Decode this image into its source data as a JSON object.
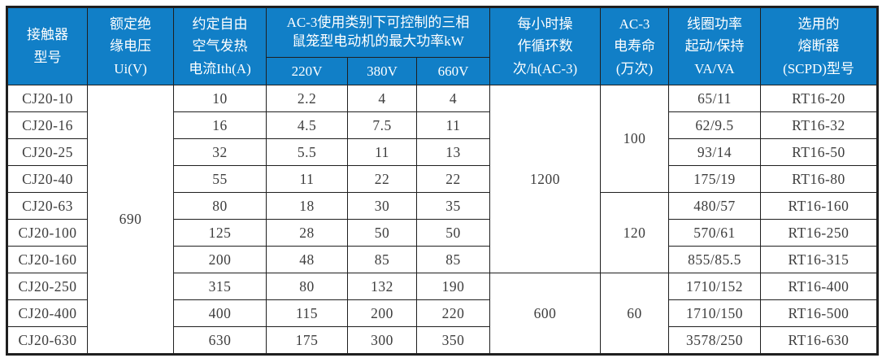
{
  "colors": {
    "header_bg": "#117fc7",
    "header_text": "#ffffff",
    "body_text": "#3d3d3d",
    "border": "#1f1f1f"
  },
  "table": {
    "header": {
      "model": "接触器\n型号",
      "insulation": "额定绝\n缘电压\nUi(V)",
      "thermal_current": "约定自由\n空气发热\n电流Ith(A)",
      "ac3_power_title": "AC-3使用类别下可控制的三相\n鼠笼型电动机的最大功率kW",
      "v220": "220V",
      "v380": "380V",
      "v660": "660V",
      "cycles": "每小时操\n作循环数\n次/h(AC-3)",
      "life": "AC-3\n电寿命\n(万次)",
      "coil": "线圈功率\n起动/保持\nVA/VA",
      "fuse": "选用的\n熔断器\n(SCPD)型号"
    },
    "insulation_voltage": "690",
    "cycle_groups": [
      {
        "value": "1200",
        "rows": 7
      },
      {
        "value": "600",
        "rows": 3
      }
    ],
    "life_groups": [
      {
        "value": "100",
        "rows": 4
      },
      {
        "value": "120",
        "rows": 3
      },
      {
        "value": "60",
        "rows": 3
      }
    ],
    "rows": [
      {
        "model": "CJ20-10",
        "ith": "10",
        "p220": "2.2",
        "p380": "4",
        "p660": "4",
        "coil": "65/11",
        "fuse": "RT16-20"
      },
      {
        "model": "CJ20-16",
        "ith": "16",
        "p220": "4.5",
        "p380": "7.5",
        "p660": "11",
        "coil": "62/9.5",
        "fuse": "RT16-32"
      },
      {
        "model": "CJ20-25",
        "ith": "32",
        "p220": "5.5",
        "p380": "11",
        "p660": "13",
        "coil": "93/14",
        "fuse": "RT16-50"
      },
      {
        "model": "CJ20-40",
        "ith": "55",
        "p220": "11",
        "p380": "22",
        "p660": "22",
        "coil": "175/19",
        "fuse": "RT16-80"
      },
      {
        "model": "CJ20-63",
        "ith": "80",
        "p220": "18",
        "p380": "30",
        "p660": "35",
        "coil": "480/57",
        "fuse": "RT16-160"
      },
      {
        "model": "CJ20-100",
        "ith": "125",
        "p220": "28",
        "p380": "50",
        "p660": "50",
        "coil": "570/61",
        "fuse": "RT16-250"
      },
      {
        "model": "CJ20-160",
        "ith": "200",
        "p220": "48",
        "p380": "85",
        "p660": "85",
        "coil": "855/85.5",
        "fuse": "RT16-315"
      },
      {
        "model": "CJ20-250",
        "ith": "315",
        "p220": "80",
        "p380": "132",
        "p660": "190",
        "coil": "1710/152",
        "fuse": "RT16-400"
      },
      {
        "model": "CJ20-400",
        "ith": "400",
        "p220": "115",
        "p380": "200",
        "p660": "220",
        "coil": "1710/150",
        "fuse": "RT16-500"
      },
      {
        "model": "CJ20-630",
        "ith": "630",
        "p220": "175",
        "p380": "300",
        "p660": "350",
        "coil": "3578/250",
        "fuse": "RT16-630"
      }
    ]
  }
}
